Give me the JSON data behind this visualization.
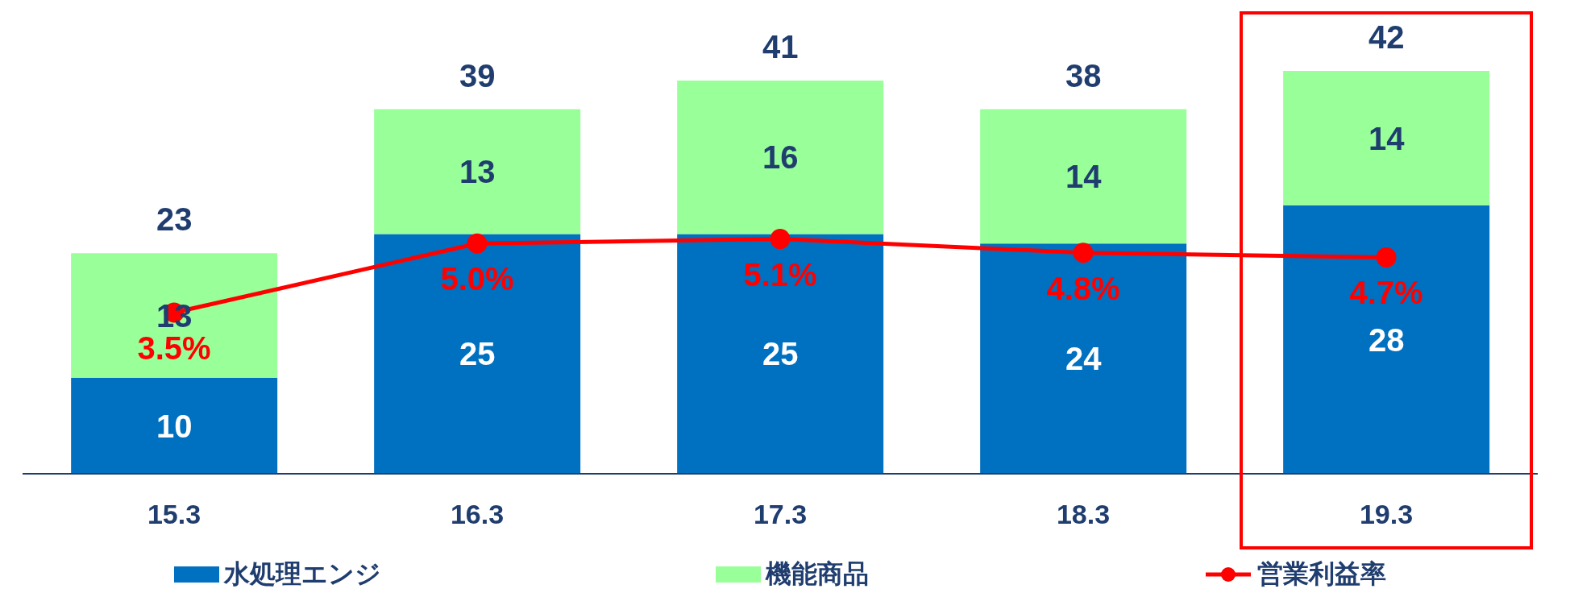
{
  "chart_data": {
    "type": "bar",
    "stacked": true,
    "categories": [
      "15.3",
      "16.3",
      "17.3",
      "18.3",
      "19.3"
    ],
    "series": [
      {
        "name": "水処理エンジ",
        "color": "#0070c0",
        "values": [
          10,
          25,
          25,
          24,
          28
        ]
      },
      {
        "name": "機能商品",
        "color": "#99ff99",
        "values": [
          13,
          13,
          16,
          14,
          14
        ]
      },
      {
        "name": "営業利益率",
        "type": "line",
        "axis": "y2",
        "color": "#ff0000",
        "values": [
          3.5,
          5.0,
          5.1,
          4.8,
          4.7
        ],
        "value_labels": [
          "3.5%",
          "5.0%",
          "5.1%",
          "4.8%",
          "4.7%"
        ]
      }
    ],
    "data_labels": true,
    "totals": [
      "23",
      "39",
      "41",
      "38",
      "42"
    ],
    "tick_labels": "x",
    "marker": "circle",
    "line_style": "solid",
    "legend": "bottom"
  }
}
